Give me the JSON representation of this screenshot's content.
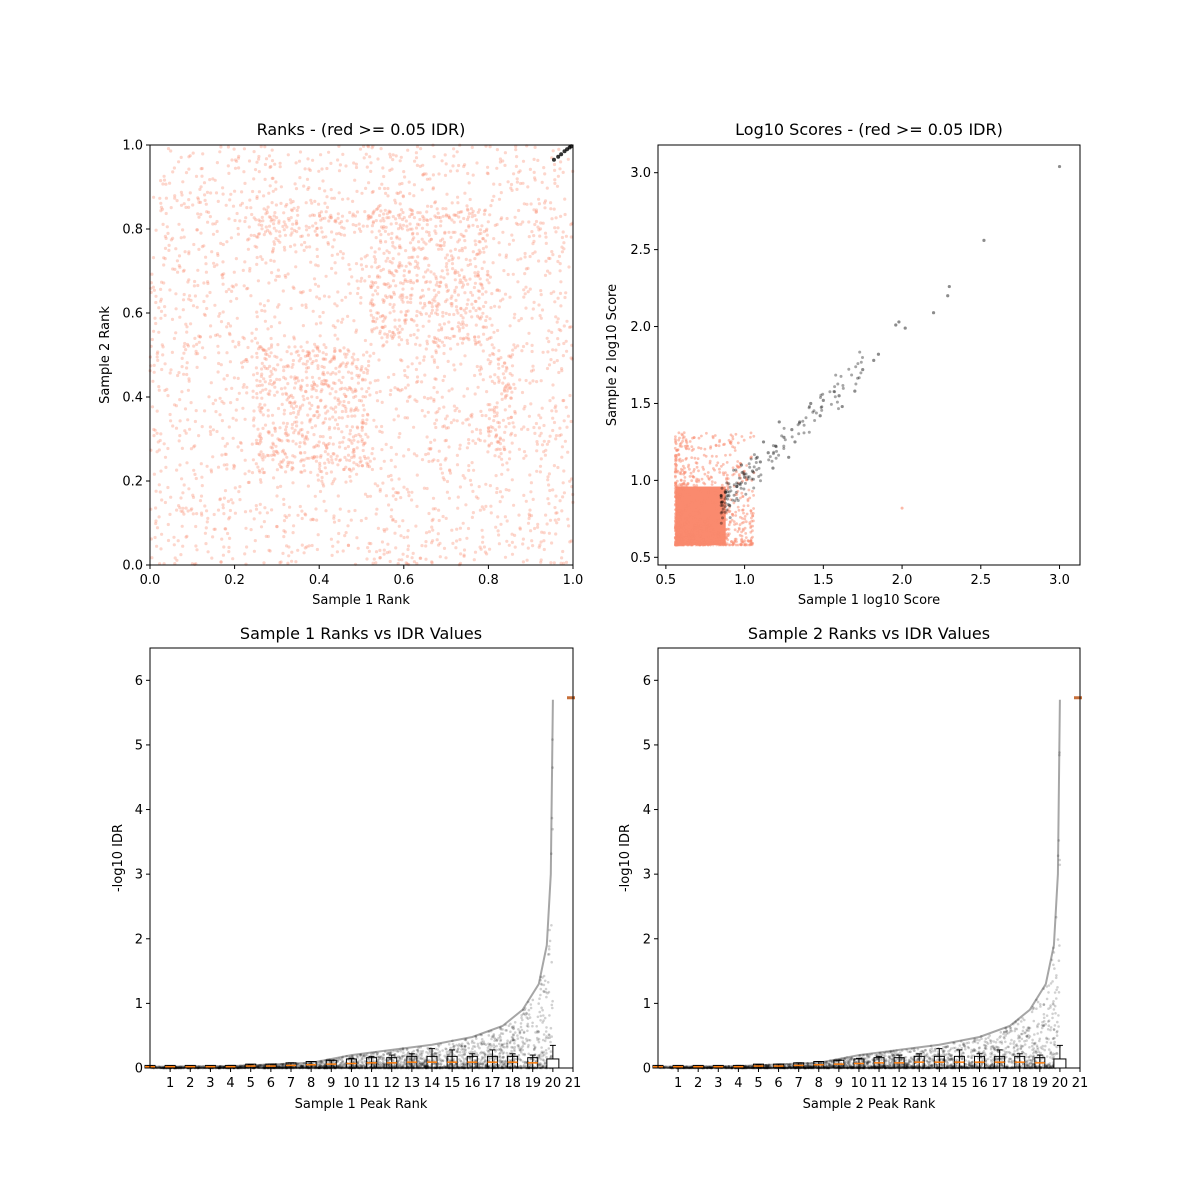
{
  "colors": {
    "not_passing": "#fa8a6e",
    "passing": "#000000",
    "median": "#ff7f0e",
    "axes": "#000000"
  },
  "chart_data": [
    {
      "id": "ranks",
      "type": "scatter",
      "title": "Ranks - (red >= 0.05 IDR)",
      "xlabel": "Sample 1 Rank",
      "ylabel": "Sample 2 Rank",
      "xlim": [
        0,
        1
      ],
      "ylim": [
        0,
        1
      ],
      "xticks": [
        "0.0",
        "0.2",
        "0.4",
        "0.6",
        "0.8",
        "1.0"
      ],
      "yticks": [
        "0.0",
        "0.2",
        "0.4",
        "0.6",
        "0.8",
        "1.0"
      ],
      "dense_regions": [
        {
          "x": [
            0.0,
            1.0
          ],
          "y": [
            0.0,
            1.0
          ],
          "density": 0.45
        },
        {
          "x": [
            0.25,
            0.52
          ],
          "y": [
            0.22,
            0.52
          ],
          "density": 1.0
        },
        {
          "x": [
            0.52,
            0.8
          ],
          "y": [
            0.52,
            0.85
          ],
          "density": 0.9
        },
        {
          "x": [
            0.25,
            0.52
          ],
          "y": [
            0.78,
            0.85
          ],
          "density": 0.9
        },
        {
          "x": [
            0.8,
            0.86
          ],
          "y": [
            0.25,
            0.52
          ],
          "density": 0.9
        }
      ],
      "passing_points": [
        [
          0.955,
          0.965
        ],
        [
          0.965,
          0.972
        ],
        [
          0.972,
          0.978
        ],
        [
          0.98,
          0.985
        ],
        [
          0.986,
          0.99
        ],
        [
          0.992,
          0.994
        ],
        [
          0.996,
          0.997
        ]
      ],
      "series": [
        {
          "name": "red >= 0.05 IDR"
        }
      ]
    },
    {
      "id": "scores",
      "type": "scatter",
      "title": "Log10 Scores - (red >= 0.05 IDR)",
      "xlabel": "Sample 1 log10 Score",
      "ylabel": "Sample 2 log10 Score",
      "xlim": [
        0.45,
        3.13
      ],
      "ylim": [
        0.45,
        3.18
      ],
      "xticks": [
        "0.5",
        "1.0",
        "1.5",
        "2.0",
        "2.5",
        "3.0"
      ],
      "yticks": [
        "0.5",
        "1.0",
        "1.5",
        "2.0",
        "2.5",
        "3.0"
      ],
      "red_block": {
        "x": [
          0.56,
          0.98
        ],
        "y": [
          0.58,
          0.96
        ]
      },
      "passing_points": [
        [
          3.0,
          3.04
        ],
        [
          2.52,
          2.56
        ],
        [
          2.3,
          2.26
        ],
        [
          2.29,
          2.2
        ],
        [
          2.2,
          2.09
        ],
        [
          1.98,
          2.03
        ],
        [
          2.02,
          1.99
        ],
        [
          1.96,
          2.01
        ],
        [
          1.85,
          1.82
        ],
        [
          1.82,
          1.78
        ],
        [
          1.75,
          1.72
        ],
        [
          1.7,
          1.58
        ],
        [
          1.6,
          1.55
        ],
        [
          1.5,
          1.52
        ],
        [
          1.42,
          1.5
        ],
        [
          1.35,
          1.38
        ],
        [
          1.3,
          1.33
        ],
        [
          1.25,
          1.28
        ],
        [
          1.2,
          1.22
        ],
        [
          1.15,
          1.18
        ],
        [
          1.1,
          1.12
        ],
        [
          1.05,
          1.06
        ],
        [
          1.0,
          1.02
        ],
        [
          0.95,
          0.96
        ],
        [
          0.9,
          0.9
        ],
        [
          0.86,
          0.86
        ],
        [
          1.48,
          1.42
        ],
        [
          1.62,
          1.48
        ],
        [
          1.32,
          1.25
        ],
        [
          1.22,
          1.38
        ],
        [
          1.12,
          1.25
        ],
        [
          1.08,
          1.15
        ],
        [
          0.98,
          1.1
        ],
        [
          1.18,
          1.08
        ],
        [
          1.28,
          1.15
        ]
      ],
      "outlier_point": [
        2.0,
        0.82
      ]
    },
    {
      "id": "s1_idr",
      "type": "scatter",
      "title": "Sample 1 Ranks vs IDR Values",
      "xlabel": "Sample 1 Peak Rank",
      "ylabel": "-log10 IDR",
      "xlim": [
        0,
        21
      ],
      "ylim": [
        0,
        6.5
      ],
      "xticks": [
        "1",
        "2",
        "3",
        "4",
        "5",
        "6",
        "7",
        "8",
        "9",
        "10",
        "11",
        "12",
        "13",
        "14",
        "15",
        "16",
        "17",
        "18",
        "19",
        "20",
        "21"
      ],
      "yticks": [
        "0",
        "1",
        "2",
        "3",
        "4",
        "5",
        "6"
      ],
      "curve": [
        {
          "x": 0,
          "y": 0.02
        },
        {
          "x": 4,
          "y": 0.03
        },
        {
          "x": 8,
          "y": 0.08
        },
        {
          "x": 10,
          "y": 0.2
        },
        {
          "x": 12,
          "y": 0.28
        },
        {
          "x": 14,
          "y": 0.36
        },
        {
          "x": 16,
          "y": 0.48
        },
        {
          "x": 17.5,
          "y": 0.65
        },
        {
          "x": 18.5,
          "y": 0.9
        },
        {
          "x": 19.3,
          "y": 1.3
        },
        {
          "x": 19.7,
          "y": 1.9
        },
        {
          "x": 19.9,
          "y": 3.0
        },
        {
          "x": 20.0,
          "y": 5.7
        }
      ],
      "box_medians": [
        0.02,
        0.02,
        0.02,
        0.02,
        0.02,
        0.03,
        0.03,
        0.04,
        0.05,
        0.06,
        0.07,
        0.08,
        0.08,
        0.09,
        0.09,
        0.09,
        0.09,
        0.09,
        0.09,
        0.08,
        0.06
      ],
      "box_whiskers": [
        0.03,
        0.03,
        0.03,
        0.03,
        0.04,
        0.05,
        0.06,
        0.08,
        0.1,
        0.12,
        0.15,
        0.18,
        0.2,
        0.22,
        0.3,
        0.28,
        0.22,
        0.28,
        0.22,
        0.2,
        0.35
      ],
      "outlier_marker_y": 5.73
    },
    {
      "id": "s2_idr",
      "type": "scatter",
      "title": "Sample 2 Ranks vs IDR Values",
      "xlabel": "Sample 2 Peak Rank",
      "ylabel": "-log10 IDR",
      "xlim": [
        0,
        21
      ],
      "ylim": [
        0,
        6.5
      ],
      "xticks": [
        "1",
        "2",
        "3",
        "4",
        "5",
        "6",
        "7",
        "8",
        "9",
        "10",
        "11",
        "12",
        "13",
        "14",
        "15",
        "16",
        "17",
        "18",
        "19",
        "20",
        "21"
      ],
      "yticks": [
        "0",
        "1",
        "2",
        "3",
        "4",
        "5",
        "6"
      ],
      "curve": [
        {
          "x": 0,
          "y": 0.02
        },
        {
          "x": 4,
          "y": 0.03
        },
        {
          "x": 8,
          "y": 0.08
        },
        {
          "x": 10,
          "y": 0.2
        },
        {
          "x": 12,
          "y": 0.28
        },
        {
          "x": 14,
          "y": 0.36
        },
        {
          "x": 16,
          "y": 0.48
        },
        {
          "x": 17.5,
          "y": 0.65
        },
        {
          "x": 18.5,
          "y": 0.9
        },
        {
          "x": 19.3,
          "y": 1.3
        },
        {
          "x": 19.7,
          "y": 1.9
        },
        {
          "x": 19.9,
          "y": 3.0
        },
        {
          "x": 20.0,
          "y": 5.7
        }
      ],
      "box_medians": [
        0.02,
        0.02,
        0.02,
        0.02,
        0.02,
        0.03,
        0.03,
        0.04,
        0.05,
        0.06,
        0.07,
        0.08,
        0.08,
        0.09,
        0.09,
        0.09,
        0.09,
        0.09,
        0.09,
        0.08,
        0.06
      ],
      "box_whiskers": [
        0.03,
        0.03,
        0.03,
        0.03,
        0.04,
        0.05,
        0.06,
        0.08,
        0.1,
        0.12,
        0.15,
        0.18,
        0.2,
        0.22,
        0.3,
        0.28,
        0.22,
        0.28,
        0.22,
        0.2,
        0.35
      ],
      "outlier_marker_y": 5.73
    }
  ]
}
